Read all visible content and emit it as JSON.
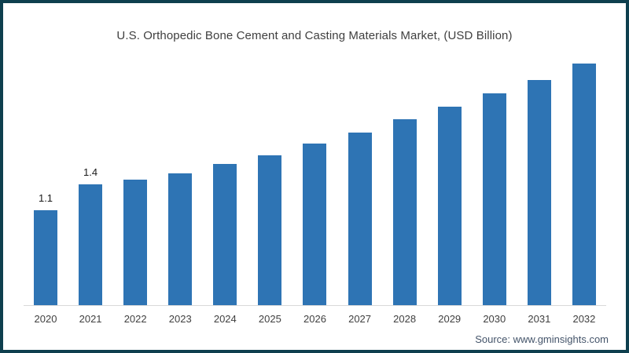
{
  "frame": {
    "border_color": "#0e3f4e",
    "background_color": "#ffffff"
  },
  "chart_data": {
    "type": "bar",
    "title": "U.S. Orthopedic Bone Cement and Casting Materials Market, (USD Billion)",
    "categories": [
      "2020",
      "2021",
      "2022",
      "2023",
      "2024",
      "2025",
      "2026",
      "2027",
      "2028",
      "2029",
      "2030",
      "2031",
      "2032"
    ],
    "values": [
      1.1,
      1.4,
      1.45,
      1.53,
      1.64,
      1.74,
      1.87,
      2.0,
      2.15,
      2.3,
      2.45,
      2.61,
      2.8
    ],
    "value_labels": {
      "2020": "1.1",
      "2021": "1.4"
    },
    "xlabel": "",
    "ylabel": "",
    "ylim": [
      0,
      3
    ],
    "grid": false,
    "legend": false,
    "bar_color": "#2e74b4",
    "axis_line_color": "#d9d9d9",
    "title_color": "#3f3f3f",
    "label_color": "#1a1a1a"
  },
  "footer": {
    "source_text": "Source: www.gminsights.com",
    "source_color": "#44546a"
  }
}
